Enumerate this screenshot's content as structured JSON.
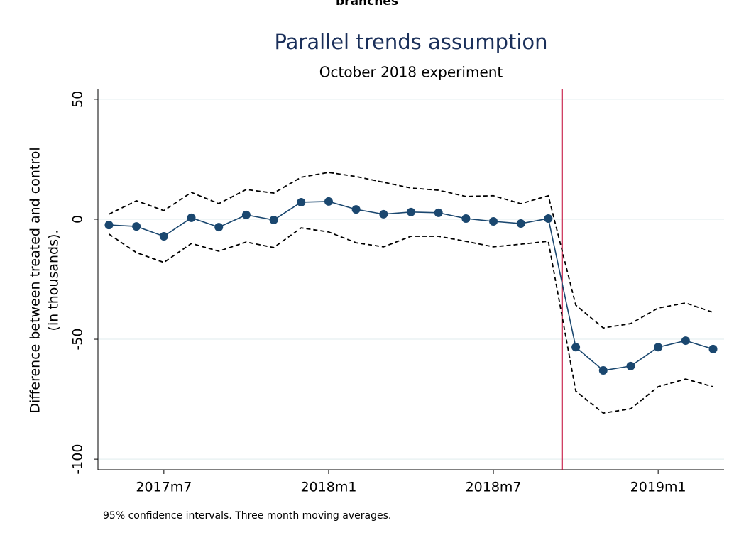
{
  "header": {
    "text": "branches"
  },
  "chart_data": {
    "type": "line",
    "title": "Parallel trends assumption",
    "subtitle": "October 2018 experiment",
    "ylabel": [
      "Difference between treated and control",
      "(in thousands)."
    ],
    "note": "95% confidence intervals. Three month moving averages.",
    "x": [
      688,
      689,
      690,
      691,
      692,
      693,
      694,
      695,
      696,
      697,
      698,
      699,
      700,
      701,
      702,
      703,
      704,
      705,
      706,
      707,
      708,
      709,
      710
    ],
    "series": [
      {
        "color": "#000000",
        "dash": true,
        "marker": false,
        "values": [
          2.1,
          7.7,
          3.6,
          11.2,
          6.5,
          12.4,
          10.9,
          17.5,
          19.5,
          17.8,
          15.4,
          13.0,
          12.1,
          9.5,
          9.8,
          6.5,
          9.8,
          -35.8,
          -45.3,
          -43.5,
          -37.0,
          -34.9,
          -38.8
        ]
      },
      {
        "color": "#000000",
        "dash": true,
        "marker": false,
        "values": [
          -6.2,
          -13.9,
          -18.0,
          -10.1,
          -13.3,
          -9.5,
          -11.8,
          -3.6,
          -5.3,
          -9.8,
          -11.5,
          -7.1,
          -7.1,
          -9.2,
          -11.5,
          -10.4,
          -9.2,
          -71.6,
          -80.8,
          -79.0,
          -69.8,
          -66.6,
          -69.8
        ]
      },
      {
        "color": "#1a476f",
        "dash": false,
        "marker": true,
        "values": [
          -2.4,
          -3.0,
          -7.1,
          0.6,
          -3.3,
          1.8,
          -0.3,
          7.1,
          7.4,
          4.1,
          2.1,
          3.0,
          2.7,
          0.3,
          -0.9,
          -1.8,
          0.3,
          -53.3,
          -63.0,
          -61.2,
          -53.3,
          -50.6,
          -54.1
        ]
      }
    ],
    "xlim": [
      687.6,
      710.4
    ],
    "xticks": [
      {
        "value": 690,
        "label": "2017m7"
      },
      {
        "value": 696,
        "label": "2018m1"
      },
      {
        "value": 702,
        "label": "2018m7"
      },
      {
        "value": 708,
        "label": "2019m1"
      }
    ],
    "ylim": [
      -104.4,
      54.4
    ],
    "yticks": [
      -100,
      -50,
      0,
      50
    ],
    "grid": true,
    "xline": 704.5,
    "xline_color": "#c10534"
  }
}
